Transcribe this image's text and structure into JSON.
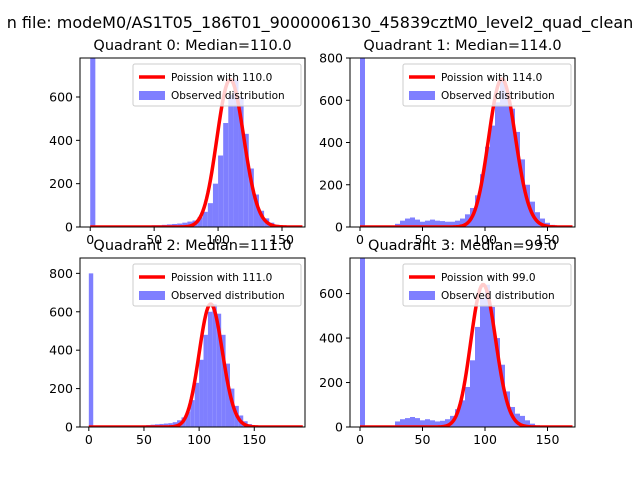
{
  "figure": {
    "suptitle": "n file: modeM0/AS1T05_186T01_9000006130_45839cztM0_level2_quad_clean"
  },
  "colors": {
    "fit": "#ff0000",
    "hist": "#7f7fff"
  },
  "chart_data": [
    {
      "type": "bar",
      "title": "Quadrant 0: Median=110.0",
      "xlim": [
        -8,
        168
      ],
      "ylim": [
        0,
        780
      ],
      "xticks": [
        0,
        50,
        100,
        150
      ],
      "yticks": [
        0,
        200,
        400,
        600
      ],
      "mu": 110.0,
      "legend": [
        "Poission with 110.0",
        "Observed distribution"
      ],
      "legend_position": "upper-right",
      "hist_bin_width": 4,
      "hist_x": [
        0,
        40,
        44,
        48,
        52,
        56,
        60,
        64,
        68,
        72,
        76,
        80,
        84,
        88,
        92,
        96,
        100,
        104,
        108,
        112,
        116,
        120,
        124,
        128,
        132,
        136,
        140,
        144,
        148,
        152
      ],
      "hist_y": [
        780,
        5,
        6,
        8,
        8,
        10,
        12,
        14,
        16,
        20,
        25,
        30,
        45,
        70,
        110,
        200,
        330,
        480,
        610,
        680,
        600,
        430,
        270,
        150,
        75,
        40,
        20,
        10,
        5,
        3
      ]
    },
    {
      "type": "bar",
      "title": "Quadrant 1: Median=114.0",
      "xlim": [
        -8,
        172
      ],
      "ylim": [
        0,
        800
      ],
      "xticks": [
        0,
        50,
        100,
        150
      ],
      "yticks": [
        0,
        200,
        400,
        600,
        800
      ],
      "mu": 114.0,
      "legend": [
        "Poission with 114.0",
        "Observed distribution"
      ],
      "legend_position": "upper-right",
      "hist_bin_width": 4,
      "hist_x": [
        0,
        28,
        32,
        36,
        40,
        44,
        48,
        52,
        56,
        60,
        64,
        68,
        72,
        76,
        80,
        84,
        88,
        92,
        96,
        100,
        104,
        108,
        112,
        116,
        120,
        124,
        128,
        132,
        136,
        140,
        144,
        148,
        152,
        156
      ],
      "hist_y": [
        800,
        15,
        30,
        40,
        45,
        35,
        25,
        30,
        35,
        30,
        28,
        25,
        25,
        30,
        40,
        60,
        90,
        150,
        250,
        380,
        480,
        590,
        700,
        640,
        560,
        450,
        320,
        200,
        120,
        70,
        40,
        20,
        10,
        5
      ]
    },
    {
      "type": "bar",
      "title": "Quadrant 2: Median=111.0",
      "xlim": [
        -8,
        196
      ],
      "ylim": [
        0,
        880
      ],
      "xticks": [
        0,
        50,
        100,
        150
      ],
      "yticks": [
        0,
        200,
        400,
        600,
        800
      ],
      "mu": 111.0,
      "legend": [
        "Poission with 111.0",
        "Observed distribution"
      ],
      "legend_position": "upper-right",
      "hist_bin_width": 4,
      "hist_x": [
        0,
        40,
        44,
        48,
        52,
        56,
        60,
        64,
        68,
        72,
        76,
        80,
        84,
        88,
        92,
        96,
        100,
        104,
        108,
        112,
        116,
        120,
        124,
        128,
        132,
        136,
        140,
        144,
        148,
        152,
        156,
        160
      ],
      "hist_y": [
        800,
        5,
        6,
        8,
        10,
        12,
        14,
        16,
        18,
        20,
        25,
        35,
        50,
        80,
        140,
        230,
        350,
        480,
        600,
        640,
        590,
        480,
        330,
        200,
        110,
        60,
        30,
        15,
        8,
        4,
        3,
        2
      ]
    },
    {
      "type": "bar",
      "title": "Quadrant 3: Median=99.0",
      "xlim": [
        -8,
        172
      ],
      "ylim": [
        0,
        760
      ],
      "xticks": [
        0,
        50,
        100,
        150
      ],
      "yticks": [
        0,
        200,
        400,
        600
      ],
      "mu": 99.0,
      "legend": [
        "Poission with 99.0",
        "Observed distribution"
      ],
      "legend_position": "upper-right",
      "hist_bin_width": 4,
      "hist_x": [
        0,
        28,
        32,
        36,
        40,
        44,
        48,
        52,
        56,
        60,
        64,
        68,
        72,
        76,
        80,
        84,
        88,
        92,
        96,
        100,
        104,
        108,
        112,
        116,
        120,
        124,
        128,
        132,
        136,
        140
      ],
      "hist_y": [
        760,
        25,
        35,
        40,
        45,
        40,
        30,
        35,
        30,
        25,
        28,
        35,
        50,
        80,
        120,
        180,
        300,
        450,
        580,
        640,
        540,
        400,
        280,
        160,
        90,
        60,
        50,
        30,
        15,
        8
      ]
    }
  ]
}
